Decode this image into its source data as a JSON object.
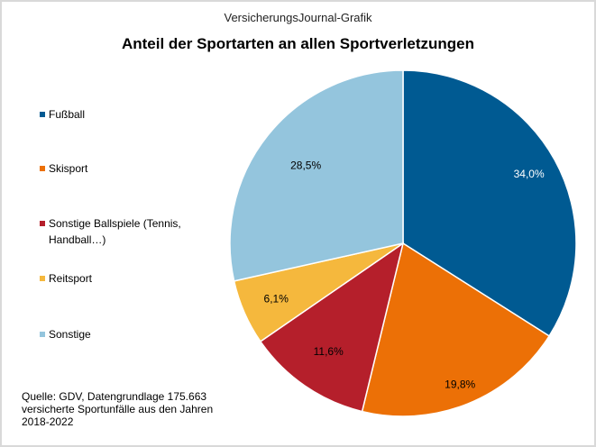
{
  "header": {
    "subtitle": "VersicherungsJournal-Grafik"
  },
  "chart_data": {
    "type": "pie",
    "title": "Anteil der Sportarten an allen Sportverletzungen",
    "categories": [
      "Fußball",
      "Skisport",
      "Sonstige Ballspiele (Tennis, Handball…)",
      "Reitsport",
      "Sonstige"
    ],
    "values": [
      34.0,
      19.8,
      11.6,
      6.1,
      28.5
    ],
    "labels": [
      "34,0%",
      "19,8%",
      "11,6%",
      "6,1%",
      "28,5%"
    ],
    "colors": [
      "#005a92",
      "#ec7006",
      "#b51f2b",
      "#f5b83d",
      "#94c5dd"
    ],
    "legend": "left"
  },
  "source": "Quelle: GDV, Datengrundlage  175.663 versicherte  Sportunfälle  aus den Jahren 2018-2022"
}
